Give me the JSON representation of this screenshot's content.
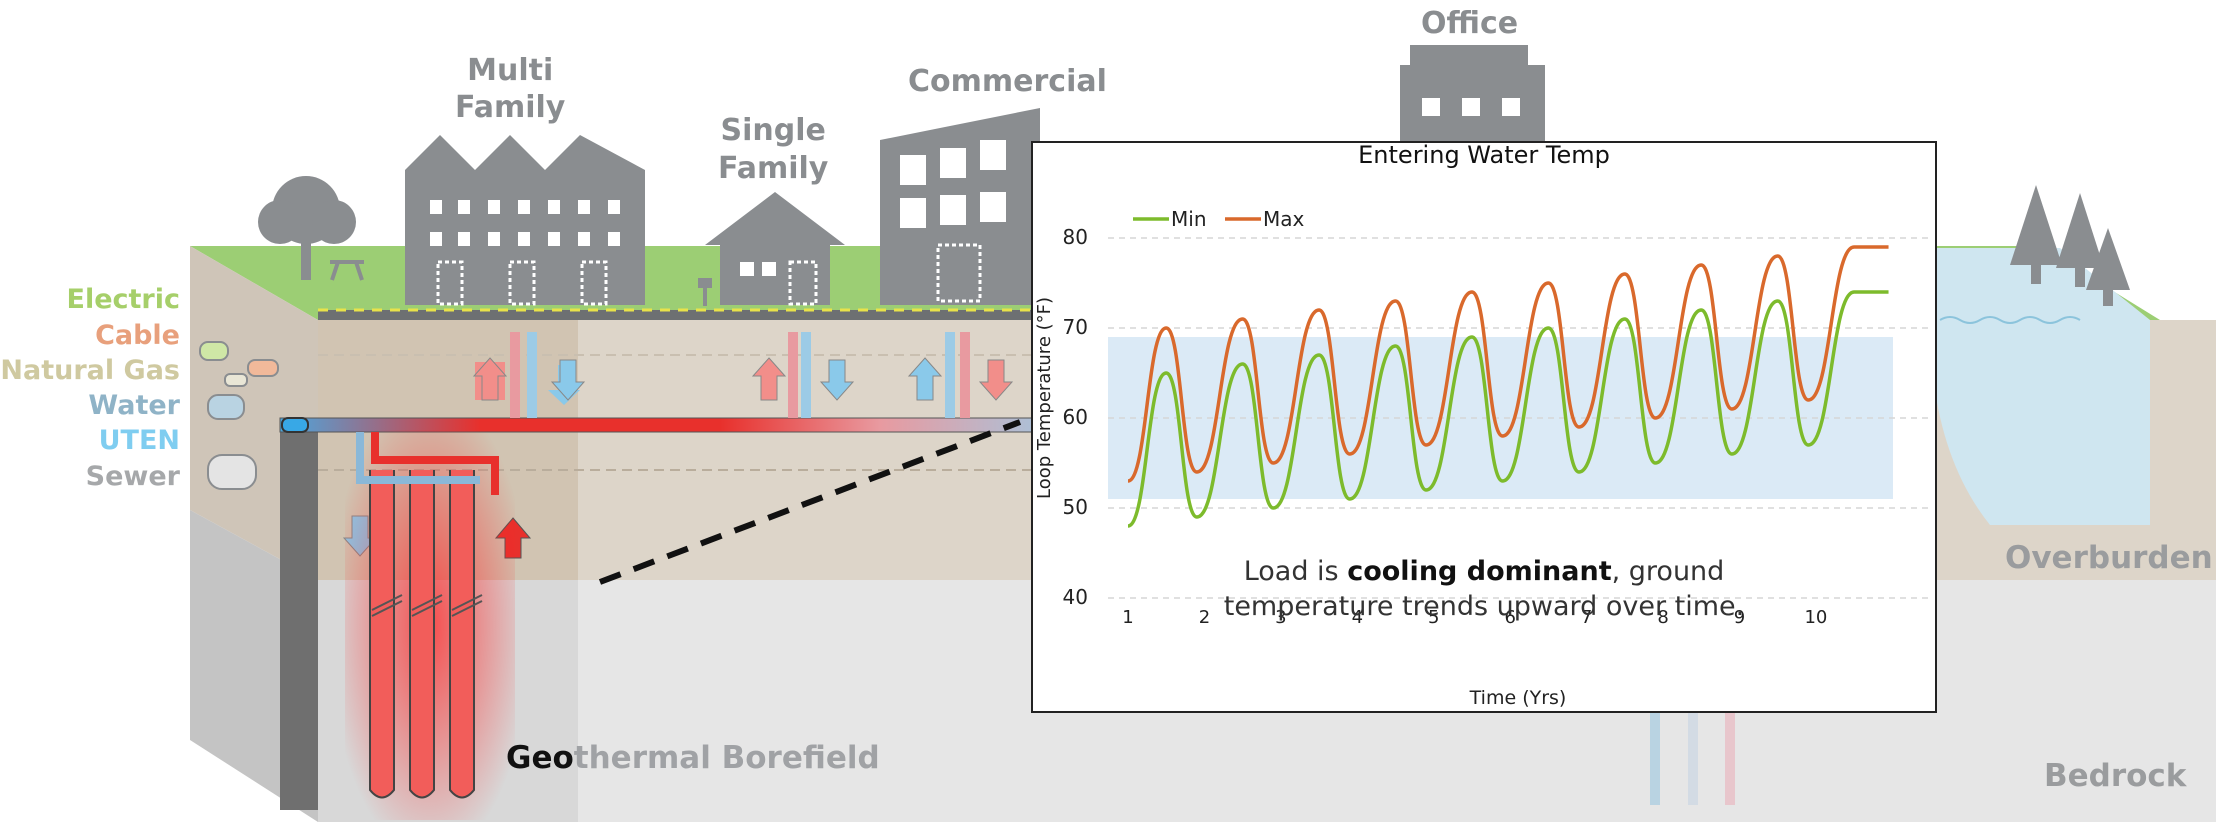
{
  "buildings": {
    "multi_family": "Multi\nFamily",
    "single_family": "Single\nFamily",
    "commercial": "Commercial",
    "office": "Office"
  },
  "utilities": [
    {
      "label": "Electric",
      "color": "#a6cf6a"
    },
    {
      "label": "Cable",
      "color": "#e8a07c"
    },
    {
      "label": "Natural Gas",
      "color": "#cfc9a0"
    },
    {
      "label": "Water",
      "color": "#8fb3c7"
    },
    {
      "label": "UTEN",
      "color": "#7fcdf0"
    },
    {
      "label": "Sewer",
      "color": "#a6a8aa"
    }
  ],
  "borefield": {
    "prefix": "Geo",
    "suffix": "thermal Borefield"
  },
  "layers": {
    "overburden": "Overburden",
    "bedrock": "Bedrock"
  },
  "colors": {
    "ground": "#9cce74",
    "soil": "#ddd5c9",
    "rock": "#e6e6e6",
    "building": "#8a8d90",
    "hot": "#e8302c",
    "cold": "#5aa6d6"
  },
  "chart_data": {
    "type": "line",
    "title": "Entering Water Temp",
    "xlabel": "Time (Yrs)",
    "ylabel": "Loop Temperature (°F)",
    "ylim": [
      40,
      80
    ],
    "yticks": [
      40,
      50,
      60,
      70,
      80
    ],
    "xticks": [
      1,
      2,
      3,
      4,
      5,
      6,
      7,
      8,
      9,
      10
    ],
    "xlim": [
      1,
      11
    ],
    "grid": true,
    "legend_position": "top-left",
    "comfort_band": [
      51,
      69
    ],
    "annotation": {
      "pre": "Load is ",
      "bold": "cooling dominant",
      "post": ", ground",
      "line2": "temperature trends upward over time."
    },
    "series": [
      {
        "name": "Min",
        "color": "#7dbb2c",
        "x": [
          1.0,
          1.5,
          1.9,
          2.5,
          2.9,
          3.5,
          3.9,
          4.5,
          4.9,
          5.5,
          5.9,
          6.5,
          6.9,
          7.5,
          7.9,
          8.5,
          8.9,
          9.5,
          9.9,
          10.5,
          10.95
        ],
        "y": [
          48,
          65,
          49,
          66,
          50,
          67,
          51,
          68,
          52,
          69,
          53,
          70,
          54,
          71,
          55,
          72,
          56,
          73,
          57,
          74,
          74
        ]
      },
      {
        "name": "Max",
        "color": "#d9692c",
        "x": [
          1.0,
          1.5,
          1.9,
          2.5,
          2.9,
          3.5,
          3.9,
          4.5,
          4.9,
          5.5,
          5.9,
          6.5,
          6.9,
          7.5,
          7.9,
          8.5,
          8.9,
          9.5,
          9.9,
          10.5,
          10.95
        ],
        "y": [
          53,
          70,
          54,
          71,
          55,
          72,
          56,
          73,
          57,
          74,
          58,
          75,
          59,
          76,
          60,
          77,
          61,
          78,
          62,
          79,
          79
        ]
      }
    ]
  }
}
